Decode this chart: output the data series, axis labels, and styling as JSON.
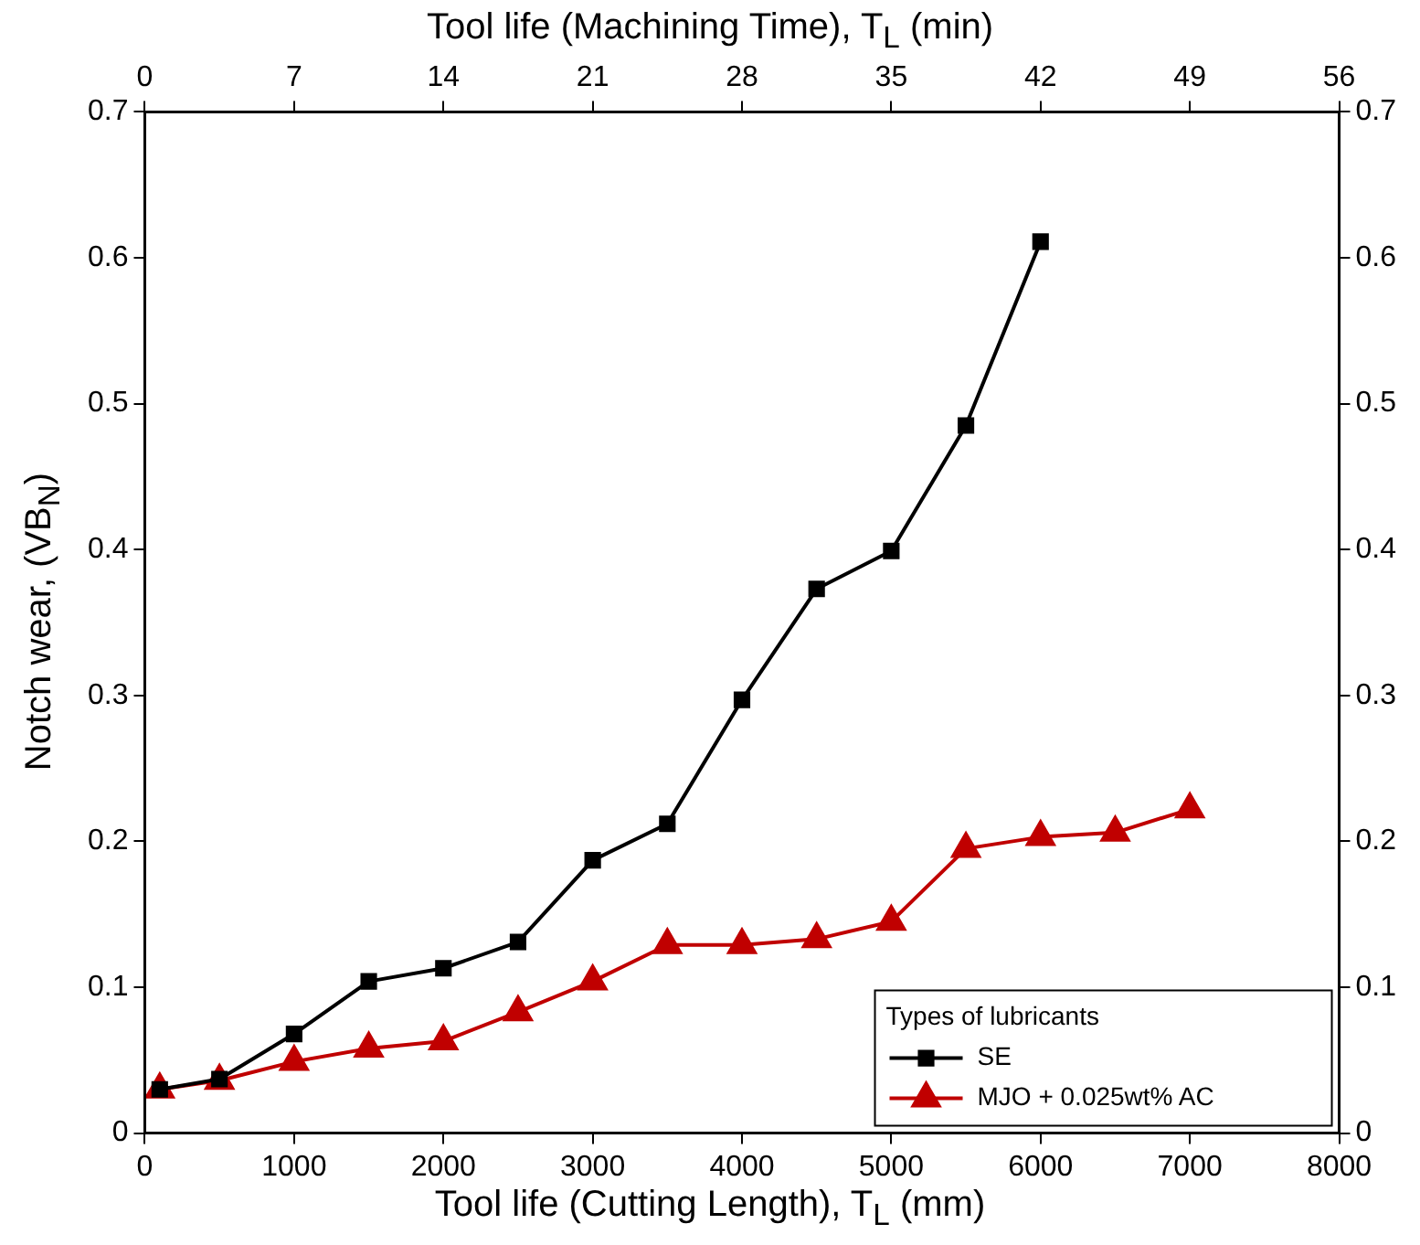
{
  "chart_data": {
    "type": "line",
    "xlabel": "Tool life (Cutting Length), T$_{L}$ (mm)",
    "x2label": "Tool life (Machining Time), T$_{L}$ (min)",
    "ylabel": "Notch wear, (VB$_{N}$)",
    "legend_title": "Types of lubricants",
    "legend": "bottom right",
    "grid": false,
    "xlim": [
      0,
      8000
    ],
    "xticks": [
      0,
      1000,
      2000,
      3000,
      4000,
      5000,
      6000,
      7000,
      8000
    ],
    "x2lim": [
      0,
      56
    ],
    "x2ticks": [
      0,
      7,
      14,
      21,
      28,
      35,
      42,
      49,
      56
    ],
    "ylim": [
      0,
      0.7
    ],
    "yticks": [
      0,
      0.1,
      0.2,
      0.3,
      0.4,
      0.5,
      0.6,
      0.7
    ],
    "y2lim": [
      0,
      0.7
    ],
    "y2ticks": [
      0,
      0.1,
      0.2,
      0.3,
      0.4,
      0.5,
      0.6,
      0.7
    ],
    "series": [
      {
        "name": "SE",
        "color": "#000000",
        "marker": "square",
        "x": [
          100,
          500,
          1000,
          1500,
          2000,
          2500,
          3000,
          3500,
          4000,
          4500,
          5000,
          5500,
          6000
        ],
        "values": [
          0.03,
          0.037,
          0.068,
          0.104,
          0.113,
          0.131,
          0.187,
          0.212,
          0.297,
          0.373,
          0.399,
          0.485,
          0.611
        ]
      },
      {
        "name": "MJO + 0.025wt% AC",
        "color": "#c00000",
        "marker": "triangle",
        "x": [
          100,
          500,
          1000,
          1500,
          2000,
          2500,
          3000,
          3500,
          4000,
          4500,
          5000,
          5500,
          6000,
          6500,
          7000
        ],
        "values": [
          0.03,
          0.036,
          0.049,
          0.058,
          0.063,
          0.083,
          0.104,
          0.129,
          0.129,
          0.133,
          0.145,
          0.195,
          0.203,
          0.206,
          0.222
        ]
      }
    ]
  }
}
